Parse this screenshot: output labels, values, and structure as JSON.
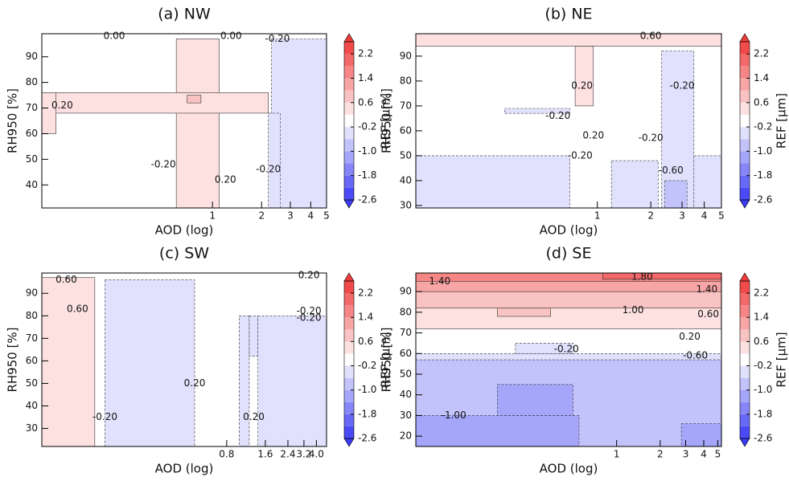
{
  "chart_data": [
    {
      "type": "contour",
      "title": "(a) NW",
      "xlabel": "AOD (log)",
      "ylabel": "RH950 [%]",
      "xscale": "log",
      "xlim": [
        0.09,
        5
      ],
      "xticks": [
        1,
        2,
        3,
        4,
        5
      ],
      "ylim": [
        31,
        99
      ],
      "yticks": [
        40,
        50,
        60,
        70,
        80,
        90
      ],
      "colorbar": {
        "label": "REF [μm]",
        "levels": [
          -2.6,
          -2.2,
          -1.8,
          -1.4,
          -1.0,
          -0.6,
          -0.2,
          0.2,
          0.6,
          1.0,
          1.4,
          1.8,
          2.2,
          2.6
        ],
        "ticks": [
          -2.6,
          -1.8,
          {
            "value": -1,
            "label": "-1.0"
          },
          -0.2,
          0.6,
          1.4,
          2.2
        ],
        "cmap": [
          "#3b3bf5",
          "#ffffff",
          "#f03b3b"
        ]
      },
      "regions": [
        {
          "level": 0.4,
          "x": [
            0.6,
            1.1
          ],
          "y": [
            31,
            97
          ]
        },
        {
          "level": 0.4,
          "x": [
            0.09,
            2.2
          ],
          "y": [
            68,
            76
          ]
        },
        {
          "level": 0.4,
          "x": [
            0.09,
            0.11
          ],
          "y": [
            60,
            76
          ]
        },
        {
          "level": 0.8,
          "x": [
            0.7,
            0.85
          ],
          "y": [
            72,
            75
          ]
        },
        {
          "level": -0.4,
          "x": [
            2.3,
            5
          ],
          "y": [
            31,
            97
          ]
        },
        {
          "level": -0.4,
          "x": [
            2.2,
            2.6
          ],
          "y": [
            31,
            68
          ]
        }
      ],
      "contour_labels": [
        {
          "text": "0.00",
          "x": 0.25,
          "y": 98
        },
        {
          "text": "0.00",
          "x": 1.3,
          "y": 98
        },
        {
          "text": "-0.20",
          "x": 2.5,
          "y": 97
        },
        {
          "text": "0.20",
          "x": 0.12,
          "y": 71
        },
        {
          "text": "-0.20",
          "x": 0.5,
          "y": 48
        },
        {
          "text": "0.20",
          "x": 1.2,
          "y": 42
        },
        {
          "text": "-0.20",
          "x": 2.2,
          "y": 46
        }
      ]
    },
    {
      "type": "contour",
      "title": "(b) NE",
      "xlabel": "AOD (log)",
      "ylabel": "RH950 [%]",
      "xscale": "log",
      "xlim": [
        0.095,
        5
      ],
      "xticks": [
        1,
        2,
        3,
        4,
        5
      ],
      "ylim": [
        29,
        99
      ],
      "yticks": [
        30,
        40,
        50,
        60,
        70,
        80,
        90
      ],
      "colorbar": {
        "label": "REF [μm]",
        "levels": [
          -2.6,
          -2.2,
          -1.8,
          -1.4,
          -1.0,
          -0.6,
          -0.2,
          0.2,
          0.6,
          1.0,
          1.4,
          1.8,
          2.2,
          2.6
        ],
        "ticks": [
          -2.6,
          -1.8,
          {
            "value": -1,
            "label": "-1.0"
          },
          -0.2,
          0.6,
          1.4,
          2.2
        ],
        "cmap": [
          "#3b3bf5",
          "#ffffff",
          "#f03b3b"
        ]
      },
      "regions": [
        {
          "level": 0.4,
          "x": [
            0.095,
            5
          ],
          "y": [
            94,
            99
          ]
        },
        {
          "level": 0.4,
          "x": [
            0.75,
            0.95
          ],
          "y": [
            70,
            94
          ]
        },
        {
          "level": -0.4,
          "x": [
            0.095,
            0.7
          ],
          "y": [
            29,
            50
          ]
        },
        {
          "level": -0.4,
          "x": [
            1.2,
            2.2
          ],
          "y": [
            29,
            48
          ]
        },
        {
          "level": -0.4,
          "x": [
            2.3,
            3.5
          ],
          "y": [
            29,
            92
          ]
        },
        {
          "level": -0.4,
          "x": [
            3.5,
            5
          ],
          "y": [
            29,
            50
          ]
        },
        {
          "level": -0.8,
          "x": [
            2.4,
            3.2
          ],
          "y": [
            29,
            40
          ]
        },
        {
          "level": -0.4,
          "x": [
            0.3,
            0.7
          ],
          "y": [
            67,
            69
          ]
        }
      ],
      "contour_labels": [
        {
          "text": "0.60",
          "x": 2,
          "y": 98
        },
        {
          "text": "0.20",
          "x": 0.82,
          "y": 78
        },
        {
          "text": "-0.20",
          "x": 3,
          "y": 78
        },
        {
          "text": "-0.20",
          "x": 0.6,
          "y": 66
        },
        {
          "text": "0.20",
          "x": 0.95,
          "y": 58
        },
        {
          "text": "-0.20",
          "x": 0.8,
          "y": 50
        },
        {
          "text": "-0.20",
          "x": 2,
          "y": 57
        },
        {
          "text": "-0.60",
          "x": 2.6,
          "y": 44
        }
      ]
    },
    {
      "type": "contour",
      "title": "(c) SW",
      "xlabel": "AOD (log)",
      "ylabel": "RH950 [%]",
      "xscale": "log",
      "xlim": [
        0.029,
        4.8
      ],
      "xticks": [
        0.8,
        1.6,
        2.4,
        3.2,
        {
          "value": 4,
          "label": "4.0"
        }
      ],
      "ylim": [
        22,
        99
      ],
      "yticks": [
        30,
        40,
        50,
        60,
        70,
        80,
        90
      ],
      "colorbar": {
        "label": "REF [μm]",
        "levels": [
          -2.6,
          -2.2,
          -1.8,
          -1.4,
          -1.0,
          -0.6,
          -0.2,
          0.2,
          0.6,
          1.0,
          1.4,
          1.8,
          2.2,
          2.6
        ],
        "ticks": [
          -2.6,
          -1.8,
          {
            "value": -1,
            "label": "-1.0"
          },
          -0.2,
          0.6,
          1.4,
          2.2
        ],
        "cmap": [
          "#3b3bf5",
          "#ffffff",
          "#f03b3b"
        ]
      },
      "regions": [
        {
          "level": 0.4,
          "x": [
            0.029,
            0.075
          ],
          "y": [
            22,
            97
          ]
        },
        {
          "level": -0.4,
          "x": [
            0.09,
            0.45
          ],
          "y": [
            22,
            96
          ]
        },
        {
          "level": -0.4,
          "x": [
            1.0,
            1.2
          ],
          "y": [
            22,
            80
          ]
        },
        {
          "level": -0.4,
          "x": [
            1.2,
            1.4
          ],
          "y": [
            62,
            80
          ]
        },
        {
          "level": -0.4,
          "x": [
            1.4,
            4.8
          ],
          "y": [
            22,
            80
          ]
        }
      ],
      "contour_labels": [
        {
          "text": "0.60",
          "x": 0.045,
          "y": 96
        },
        {
          "text": "0.20",
          "x": 3.5,
          "y": 98
        },
        {
          "text": "0.60",
          "x": 0.055,
          "y": 83
        },
        {
          "text": "-0.20",
          "x": 3.5,
          "y": 82
        },
        {
          "text": "-0.20",
          "x": 3.5,
          "y": 79
        },
        {
          "text": "0.20",
          "x": 0.45,
          "y": 50
        },
        {
          "text": "-0.20",
          "x": 0.09,
          "y": 35
        },
        {
          "text": "0.20",
          "x": 1.3,
          "y": 35
        }
      ]
    },
    {
      "type": "contour",
      "title": "(d) SE",
      "xlabel": "AOD (log)",
      "ylabel": "RH950 [%]",
      "xscale": "log",
      "xlim": [
        0.041,
        5.3
      ],
      "xticks": [
        1,
        2,
        3,
        4,
        5
      ],
      "ylim": [
        15,
        99
      ],
      "yticks": [
        20,
        30,
        40,
        50,
        60,
        70,
        80,
        90
      ],
      "colorbar": {
        "label": "REF [μm]",
        "levels": [
          -2.6,
          -2.2,
          -1.8,
          -1.4,
          -1.0,
          -0.6,
          -0.2,
          0.2,
          0.6,
          1.0,
          1.4,
          1.8,
          2.2,
          2.6
        ],
        "ticks": [
          -2.6,
          -1.8,
          {
            "value": -1,
            "label": "-1.0"
          },
          -0.2,
          0.6,
          1.4,
          2.2
        ],
        "cmap": [
          "#3b3bf5",
          "#ffffff",
          "#f03b3b"
        ]
      },
      "regions": [
        {
          "level": -0.8,
          "x": [
            0.041,
            5.3
          ],
          "y": [
            15,
            57
          ]
        },
        {
          "level": -1.2,
          "x": [
            0.041,
            0.55
          ],
          "y": [
            15,
            30
          ]
        },
        {
          "level": -1.2,
          "x": [
            0.15,
            0.5
          ],
          "y": [
            30,
            45
          ]
        },
        {
          "level": -1.2,
          "x": [
            2.8,
            5.3
          ],
          "y": [
            15,
            26
          ]
        },
        {
          "level": -0.4,
          "x": [
            0.041,
            5.3
          ],
          "y": [
            57,
            60
          ]
        },
        {
          "level": -0.4,
          "x": [
            0.2,
            0.5
          ],
          "y": [
            60,
            65
          ]
        },
        {
          "level": 0.4,
          "x": [
            0.041,
            5.3
          ],
          "y": [
            72,
            99
          ]
        },
        {
          "level": 0.8,
          "x": [
            0.041,
            5.3
          ],
          "y": [
            82,
            99
          ]
        },
        {
          "level": 0.8,
          "x": [
            0.15,
            0.35
          ],
          "y": [
            78,
            82
          ]
        },
        {
          "level": 1.2,
          "x": [
            0.041,
            5.3
          ],
          "y": [
            90,
            99
          ]
        },
        {
          "level": 1.6,
          "x": [
            0.041,
            5.3
          ],
          "y": [
            95,
            99
          ]
        },
        {
          "level": 2.0,
          "x": [
            0.8,
            5.3
          ],
          "y": [
            96,
            99
          ]
        }
      ],
      "contour_labels": [
        {
          "text": "1.40",
          "x": 0.06,
          "y": 95
        },
        {
          "text": "1.80",
          "x": 1.5,
          "y": 97
        },
        {
          "text": "1.40",
          "x": 4.2,
          "y": 91
        },
        {
          "text": "1.00",
          "x": 1.3,
          "y": 81
        },
        {
          "text": "0.60",
          "x": 4.3,
          "y": 79
        },
        {
          "text": "0.20",
          "x": 3.2,
          "y": 68
        },
        {
          "text": "-0.20",
          "x": 0.45,
          "y": 62
        },
        {
          "text": "-0.60",
          "x": 3.5,
          "y": 59
        },
        {
          "text": "-1.00",
          "x": 0.075,
          "y": 30
        }
      ]
    }
  ]
}
